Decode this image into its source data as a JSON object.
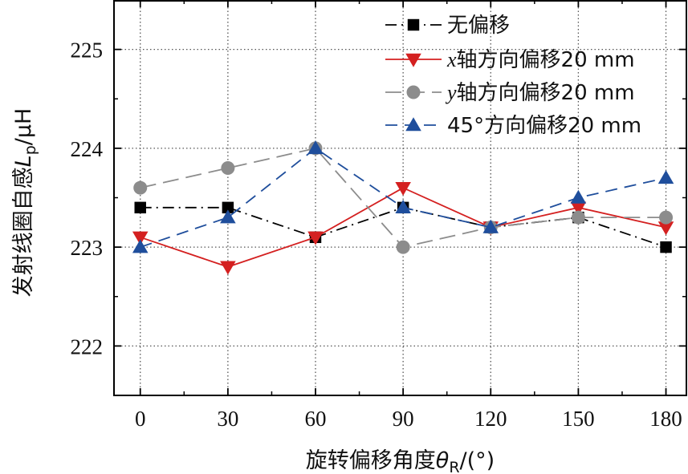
{
  "chart_data": {
    "type": "line",
    "xlabel": "旋转偏移角度θR/(°)",
    "xlabel_parts": {
      "main": "旋转偏移角度",
      "symbol": "θ",
      "sub": "R",
      "unit": "/(°)"
    },
    "ylabel": "发射线圈自感Lp/μH",
    "ylabel_parts": {
      "main": "发射线圈自感",
      "symbol": "L",
      "sub": "p",
      "unit": "/μH"
    },
    "x": [
      0,
      30,
      60,
      90,
      120,
      150,
      180
    ],
    "x_tick_labels": [
      "0",
      "30",
      "60",
      "90",
      "120",
      "150",
      "180"
    ],
    "y_ticks": [
      222,
      223,
      224,
      225
    ],
    "y_tick_labels": [
      "222",
      "223",
      "224",
      "225"
    ],
    "xlim": [
      -9,
      187
    ],
    "ylim": [
      221.5,
      225.5
    ],
    "grid": true,
    "legend_position": "top-right",
    "series": [
      {
        "name": "无偏移",
        "legend_parts": {
          "prefix": "",
          "text": "无偏移"
        },
        "values": [
          223.4,
          223.4,
          223.1,
          223.4,
          223.2,
          223.3,
          223.0
        ],
        "color": "#000000",
        "marker": "square",
        "dash": "dash-dot"
      },
      {
        "name": "x轴方向偏移20 mm",
        "legend_parts": {
          "prefix": "x",
          "text": "轴方向偏移20 mm"
        },
        "values": [
          223.1,
          222.8,
          223.1,
          223.6,
          223.2,
          223.4,
          223.2
        ],
        "color": "#d42020",
        "marker": "triangle-down",
        "dash": "solid"
      },
      {
        "name": "y轴方向偏移20 mm",
        "legend_parts": {
          "prefix": "y",
          "text": "轴方向偏移20 mm"
        },
        "values": [
          223.6,
          223.8,
          224.0,
          223.0,
          223.2,
          223.3,
          223.3
        ],
        "color": "#8c8c8c",
        "marker": "circle",
        "dash": "long-dash"
      },
      {
        "name": "45°方向偏移20 mm",
        "legend_parts": {
          "prefix": "",
          "text": "45°方向偏移20 mm"
        },
        "values": [
          223.0,
          223.3,
          224.0,
          223.4,
          223.2,
          223.5,
          223.7
        ],
        "color": "#1f4e9c",
        "marker": "triangle-up",
        "dash": "dash"
      }
    ]
  }
}
